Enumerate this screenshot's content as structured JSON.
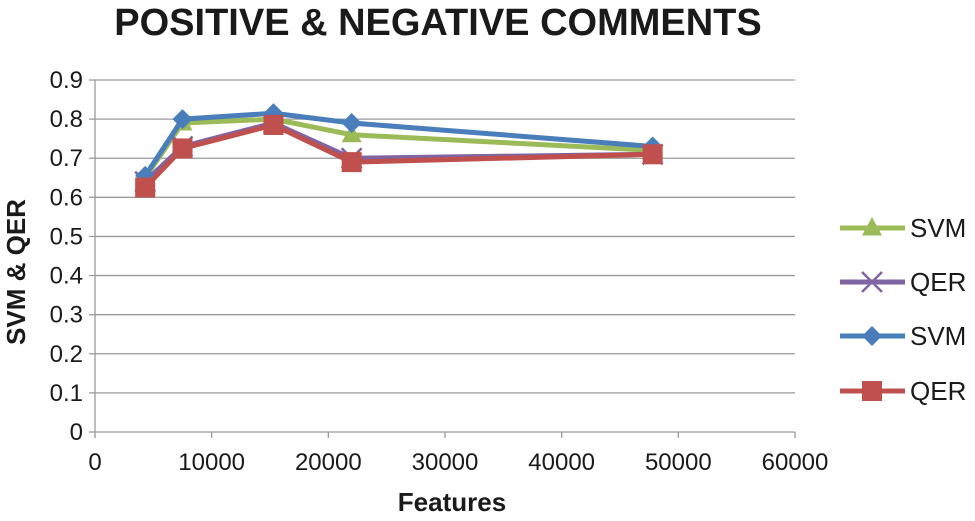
{
  "chart_data": {
    "type": "line",
    "title": "POSITIVE & NEGATIVE COMMENTS",
    "xlabel": "Features",
    "ylabel": "SVM & QER",
    "xlim": [
      0,
      60000
    ],
    "ylim": [
      0,
      0.9
    ],
    "x_ticks": [
      "0",
      "10000",
      "20000",
      "30000",
      "40000",
      "50000",
      "60000"
    ],
    "y_ticks": [
      "0",
      "0.1",
      "0.2",
      "0.3",
      "0.4",
      "0.5",
      "0.6",
      "0.7",
      "0.8",
      "0.9"
    ],
    "grid": "horizontal",
    "legend_position": "right",
    "series": [
      {
        "name": "SVM",
        "color": "#9bbb59",
        "marker": "triangle",
        "points": [
          [
            4300,
            0.65
          ],
          [
            7500,
            0.79
          ],
          [
            15300,
            0.8
          ],
          [
            22000,
            0.76
          ],
          [
            47800,
            0.72
          ]
        ]
      },
      {
        "name": "QER",
        "color": "#8064a2",
        "marker": "x",
        "points": [
          [
            4300,
            0.64
          ],
          [
            7500,
            0.73
          ],
          [
            15300,
            0.79
          ],
          [
            22000,
            0.7
          ],
          [
            47800,
            0.71
          ]
        ]
      },
      {
        "name": "SVM",
        "color": "#4a7ebb",
        "marker": "diamond",
        "points": [
          [
            4300,
            0.655
          ],
          [
            7500,
            0.8
          ],
          [
            15300,
            0.815
          ],
          [
            22000,
            0.79
          ],
          [
            47800,
            0.73
          ]
        ]
      },
      {
        "name": "QER",
        "color": "#c0504d",
        "marker": "square",
        "points": [
          [
            4300,
            0.625
          ],
          [
            7500,
            0.725
          ],
          [
            15300,
            0.785
          ],
          [
            22000,
            0.69
          ],
          [
            47800,
            0.71
          ]
        ]
      }
    ]
  }
}
